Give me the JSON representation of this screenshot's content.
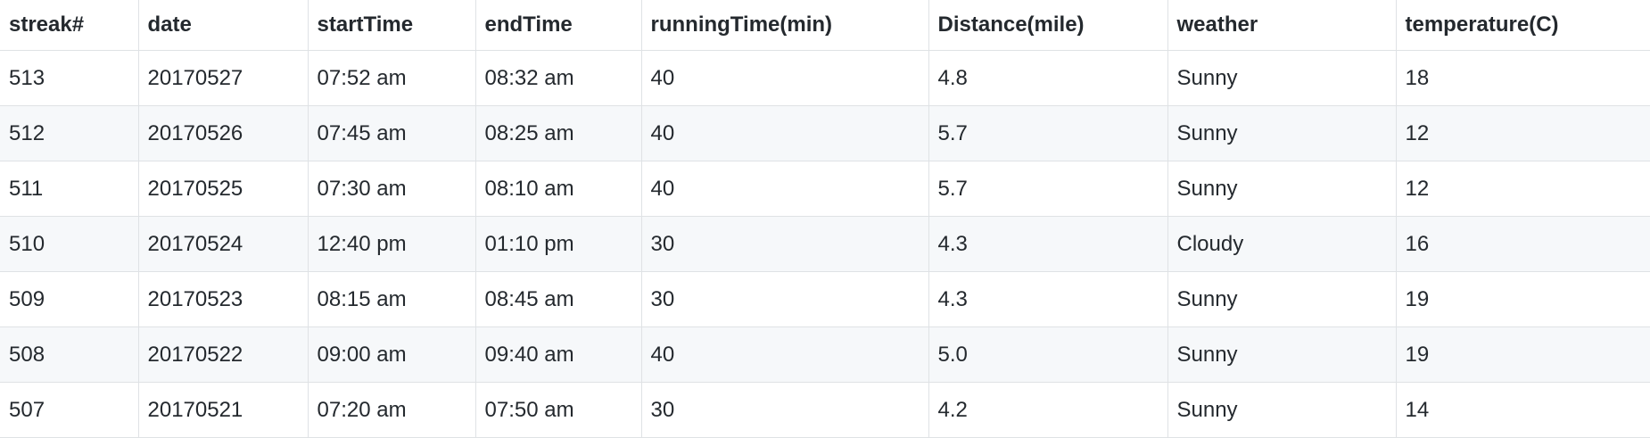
{
  "table": {
    "columns": [
      "streak#",
      "date",
      "startTime",
      "endTime",
      "runningTime(min)",
      "Distance(mile)",
      "weather",
      "temperature(C)"
    ],
    "rows": [
      [
        "513",
        "20170527",
        "07:52 am",
        "08:32 am",
        "40",
        "4.8",
        "Sunny",
        "18"
      ],
      [
        "512",
        "20170526",
        "07:45 am",
        "08:25 am",
        "40",
        "5.7",
        "Sunny",
        "12"
      ],
      [
        "511",
        "20170525",
        "07:30 am",
        "08:10 am",
        "40",
        "5.7",
        "Sunny",
        "12"
      ],
      [
        "510",
        "20170524",
        "12:40 pm",
        "01:10 pm",
        "30",
        "4.3",
        "Cloudy",
        "16"
      ],
      [
        "509",
        "20170523",
        "08:15 am",
        "08:45 am",
        "30",
        "4.3",
        "Sunny",
        "19"
      ],
      [
        "508",
        "20170522",
        "09:00 am",
        "09:40 am",
        "40",
        "5.0",
        "Sunny",
        "19"
      ],
      [
        "507",
        "20170521",
        "07:20 am",
        "07:50 am",
        "30",
        "4.2",
        "Sunny",
        "14"
      ]
    ]
  }
}
